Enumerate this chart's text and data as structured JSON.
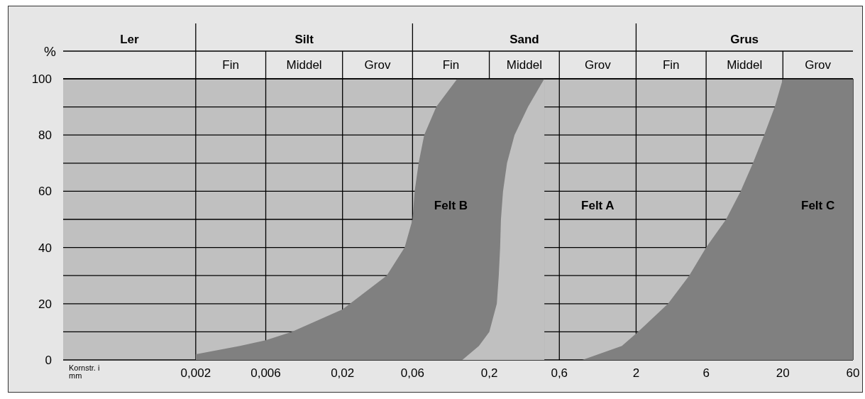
{
  "chart_data": {
    "type": "area",
    "xlabel": "Kornstr. i mm",
    "ylabel": "%",
    "log": "x",
    "grid": true,
    "xlim": [
      0.00025,
      60
    ],
    "xticks": [
      {
        "value": 0.002,
        "label": "0,002"
      },
      {
        "value": 0.006,
        "label": "0,006"
      },
      {
        "value": 0.02,
        "label": "0,02"
      },
      {
        "value": 0.06,
        "label": "0,06"
      },
      {
        "value": 0.2,
        "label": "0,2"
      },
      {
        "value": 0.6,
        "label": "0,6"
      },
      2,
      6,
      20,
      60
    ],
    "ylim": [
      0,
      100
    ],
    "yticks": [
      0,
      {
        "value": 10,
        "label": null
      },
      20,
      {
        "value": 30,
        "label": null
      },
      40,
      {
        "value": 50,
        "label": null
      },
      60,
      {
        "value": 70,
        "label": null
      },
      80,
      {
        "value": 90,
        "label": null
      },
      100
    ],
    "series": [
      {
        "color": "#808080",
        "x": [
          0.002,
          0.004,
          0.006,
          0.009,
          0.02,
          0.04,
          0.053,
          0.06,
          0.062,
          0.066,
          0.072,
          0.087,
          0.121,
          0.474
        ],
        "values": [
          2,
          5,
          7,
          10,
          18,
          30,
          40,
          50,
          60,
          70,
          80,
          90,
          100,
          100
        ]
      },
      {
        "color": "#c0c0c0",
        "x": [
          0.131,
          0.17,
          0.2,
          0.225,
          0.232,
          0.237,
          0.24,
          0.248,
          0.264,
          0.297,
          0.367,
          0.474
        ],
        "values": [
          0,
          5,
          10,
          20,
          30,
          40,
          50,
          60,
          70,
          80,
          90,
          100
        ]
      },
      {
        "color": "#808080",
        "x": [
          0.86,
          1.6,
          2.06,
          3.3,
          4.6,
          6,
          8.2,
          10.3,
          12.5,
          14.9,
          17.6,
          20,
          60
        ],
        "values": [
          0,
          5,
          10,
          20,
          30,
          40,
          50,
          60,
          70,
          80,
          90,
          100,
          100
        ]
      }
    ],
    "annotations": [
      "Ler",
      "Silt",
      "Sand",
      "Grus",
      "Fin",
      "Middel",
      "Grov",
      "Fin",
      "Middel",
      "Grov",
      "Fin",
      "Middel",
      "Grov",
      "Felt B",
      "Felt A",
      "Felt C"
    ]
  }
}
